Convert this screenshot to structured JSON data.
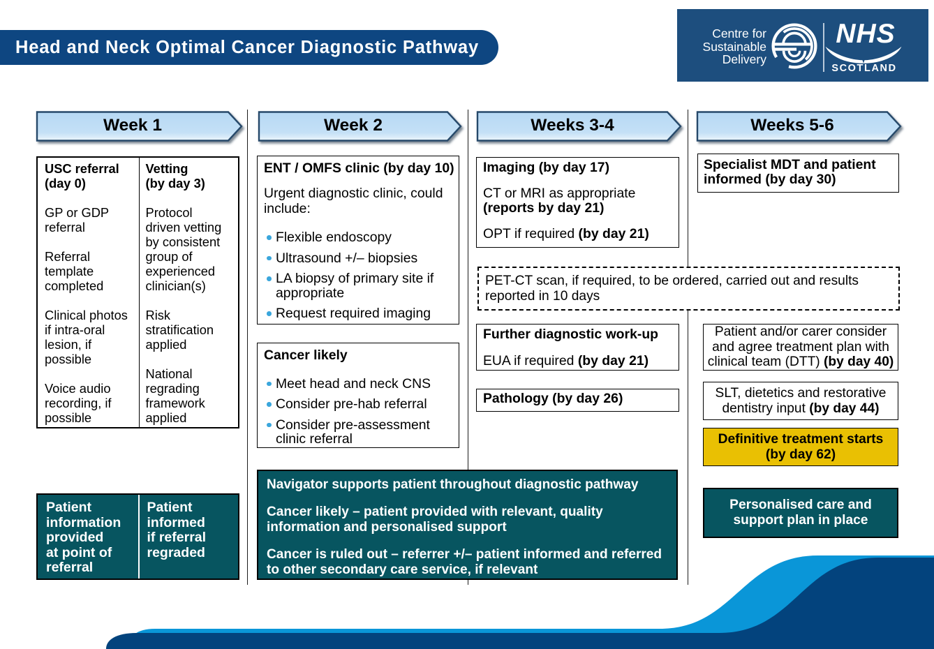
{
  "title_banner": "Head and Neck Optimal Cancer Diagnostic Pathway",
  "logo": {
    "org_line1": "Centre for",
    "org_line2": "Sustainable",
    "org_line3": "Delivery",
    "nhs": "NHS",
    "region": "SCOTLAND",
    "emblem_icon": "csd-circular-s-emblem",
    "swoosh_icon": "nhs-scotland-swoosh"
  },
  "weeks": [
    {
      "label": "Week 1"
    },
    {
      "label": "Week 2"
    },
    {
      "label": "Weeks 3-4"
    },
    {
      "label": "Weeks 5-6"
    }
  ],
  "week1": {
    "referral_vetting_box": {
      "left": {
        "heading": "USC referral\n(day 0)",
        "paras": [
          "GP or GDP\nreferral",
          "Referral\ntemplate\ncompleted",
          "Clinical photos\nif intra-oral\nlesion, if\npossible",
          "Voice audio\nrecording, if\npossible"
        ]
      },
      "right": {
        "heading": "Vetting\n(by day 3)",
        "paras": [
          "Protocol\ndriven vetting\nby consistent\ngroup of\nexperienced\nclinician(s)",
          "Risk\nstratification\napplied",
          "National\nregrading\nframework\napplied"
        ]
      }
    },
    "patient_info_box": {
      "left": "Patient\ninformation\nprovided\nat point of\nreferral",
      "right": "Patient\ninformed\nif referral\nregraded"
    }
  },
  "week2": {
    "clinic_box": {
      "heading": "ENT / OMFS clinic (by day 10)",
      "intro": "Urgent diagnostic clinic, could include:",
      "bullets": [
        "Flexible endoscopy",
        "Ultrasound +/– biopsies",
        "LA biopsy of primary site if appropriate",
        "Request required imaging"
      ]
    },
    "cancer_likely_box": {
      "heading": "Cancer likely",
      "bullets": [
        "Meet head and neck CNS",
        "Consider pre-hab referral",
        "Consider pre-assessment clinic referral"
      ]
    },
    "navigator_box": {
      "paras": [
        "Navigator supports patient throughout diagnostic pathway",
        "Cancer likely – patient provided with relevant, quality\ninformation and personalised support",
        "Cancer is ruled out – referrer +/– patient informed and referred\nto other secondary care service, if relevant"
      ]
    }
  },
  "weeks34": {
    "imaging_box": {
      "heading": "Imaging (by day 17)",
      "line1": [
        {
          "t": "CT or MRI as appropriate\n",
          "b": 0
        },
        {
          "t": "(reports by day 21)",
          "b": 1
        }
      ],
      "line2": [
        {
          "t": "OPT if required ",
          "b": 0
        },
        {
          "t": "(by day 21)",
          "b": 1
        }
      ]
    },
    "petct_box": {
      "text": "PET-CT scan, if required, to be ordered, carried out and results\nreported in 10 days"
    },
    "workup_box": {
      "heading": "Further diagnostic work-up",
      "line": [
        {
          "t": "EUA if required ",
          "b": 0
        },
        {
          "t": "(by day 21)",
          "b": 1
        }
      ]
    },
    "pathology_box": {
      "heading": "Pathology (by day 26)"
    }
  },
  "weeks56": {
    "mdt_box": {
      "heading": "Specialist MDT and patient\ninformed (by day 30)"
    },
    "treatment_plan_box": [
      {
        "t": "Patient and/or carer consider\nand agree treatment plan with\nclinical team (DTT) ",
        "b": 0
      },
      {
        "t": "(by day 40)",
        "b": 1
      }
    ],
    "slt_box": [
      {
        "t": "SLT, dietetics and restorative\ndentistry input ",
        "b": 0
      },
      {
        "t": "(by day 44)",
        "b": 1
      }
    ],
    "definitive_box": "Definitive treatment starts\n(by day 62)",
    "personalised_box": "Personalised care and\nsupport plan in place"
  },
  "colors": {
    "banner-navy": "#0e4681",
    "logo-navy": "#1d4e7e",
    "teal": "#075560",
    "gold": "#e9c003",
    "arrow-fill": "#bedcf5",
    "arrow-border": "#27496b",
    "bullet-blue": "#3aa6dc",
    "wave-light": "#0a96d8",
    "wave-navy": "#03437d"
  }
}
